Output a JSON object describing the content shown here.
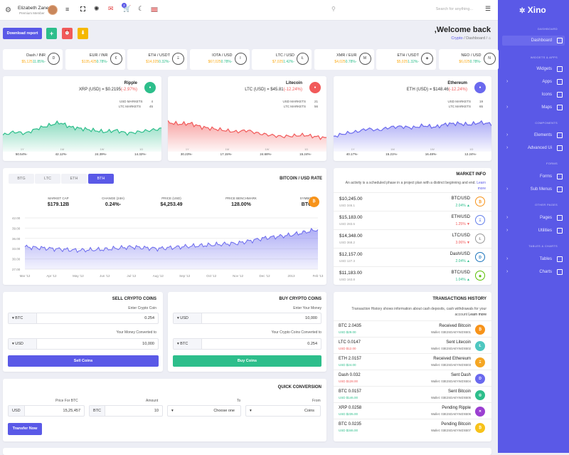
{
  "topbar": {
    "user_name": "Elizabeth Zane",
    "user_role": "Premium Member",
    "search_placeholder": "Search for anything...",
    "cart_badge": "2"
  },
  "sidebar": {
    "logo": "Xino",
    "sections": {
      "dashboard": "DASHBOARD",
      "widgets": "WIDGETS & APPS",
      "components": "COMPONENTS",
      "forms": "FORMS",
      "other": "OTHER PAGES",
      "tables": "TABLES & CHARTS"
    },
    "items": [
      "Dashboard",
      "Widgets",
      "Apps",
      "Icons",
      "Maps",
      "Elements",
      "Advanced Ui",
      "Forms",
      "Sub Menus",
      "Pages",
      "Utilities",
      "Tables",
      "Charts"
    ]
  },
  "header": {
    "welcome": ",Welcome back",
    "breadcrumb_a": "Crypto",
    "breadcrumb_b": "Dashboard"
  },
  "actions": {
    "download": "Download report",
    "add": "+",
    "alarm": "⏰",
    "save": "⬇"
  },
  "tickers": [
    {
      "name": "Dash / INR",
      "price": "$5,125",
      "change": "11.85%-",
      "coin": "D"
    },
    {
      "name": "EUR / INR",
      "price": "$135,425",
      "change": "0.78%-",
      "coin": "€"
    },
    {
      "name": "ETH / USDT",
      "price": "$14,025",
      "change": "0.32%-",
      "coin": "Ξ"
    },
    {
      "name": "IOTA / USD",
      "price": "$67,025",
      "change": "0.78%-",
      "coin": "I"
    },
    {
      "name": "LTC / USD",
      "price": "$7,025",
      "change": "1.42%-",
      "coin": "Ł"
    },
    {
      "name": "XMR / EUR",
      "price": "$4,025",
      "change": "0.78%-",
      "coin": "M"
    },
    {
      "name": "ETH / USDT",
      "price": "$5,025",
      "change": "1.32%-",
      "coin": "◈"
    },
    {
      "name": "NEO / USD",
      "price": "$6,025",
      "change": "0.78%-",
      "coin": "N"
    }
  ],
  "coins": [
    {
      "name": "Ripple",
      "pair": "XRP (USD) = $0.2195",
      "change": "(-2.97%)",
      "usd_markets_label": "USD MARKETS",
      "usd_markets": "4",
      "ltc_markets_label": "LTC MARKETS",
      "ltc_markets": "45",
      "color": "#2dbe8b",
      "foot": [
        {
          "l": "1Y",
          "v": "50.54%-"
        },
        {
          "l": "1M",
          "v": "42.12%-"
        },
        {
          "l": "1W",
          "v": "24.39%-"
        },
        {
          "l": "1D",
          "v": "14.32%-"
        }
      ]
    },
    {
      "name": "Litecoin",
      "pair": "LTC (USD) = $45.81",
      "change": "(-12.24%)",
      "usd_markets_label": "USD MARKETS",
      "usd_markets": "21",
      "ltc_markets_label": "LTC MARKETS",
      "ltc_markets": "56",
      "color": "#f15a5a",
      "foot": [
        {
          "l": "1Y",
          "v": "30.23%-"
        },
        {
          "l": "1M",
          "v": "17.15%-"
        },
        {
          "l": "1W",
          "v": "24.68%-"
        },
        {
          "l": "1D",
          "v": "15.24%-"
        }
      ]
    },
    {
      "name": "Ethereum",
      "pair": "ETH (USD) = $148.46",
      "change": "(-12.24%)",
      "usd_markets_label": "USD MARKETS",
      "usd_markets": "19",
      "ltc_markets_label": "LTC MARKETS",
      "ltc_markets": "65",
      "color": "#6a69ee",
      "foot": [
        {
          "l": "1Y",
          "v": "40.17%-"
        },
        {
          "l": "1M",
          "v": "15.21%-"
        },
        {
          "l": "1W",
          "v": "16.48%-"
        },
        {
          "l": "1D",
          "v": "12.24%-"
        }
      ]
    }
  ],
  "rate": {
    "title": "BITCOIN / USD RATE",
    "tabs": [
      "BTG",
      "LTC",
      "ETH",
      "BTH"
    ],
    "stats": [
      {
        "label": "MARKET CAP",
        "value": "$179.12B"
      },
      {
        "label": "CHANGE (24H)",
        "value": "0.24%-"
      },
      {
        "label": "PRICE (USD)",
        "value": "$4,253.49"
      },
      {
        "label": "PRICE BENCHMARK",
        "value": "128.00%"
      },
      {
        "label": "SYMBOL",
        "value": "BTC"
      }
    ]
  },
  "chart_data": {
    "type": "area",
    "categories": [
      "Mar '12",
      "Apr '12",
      "May '12",
      "Jun '12",
      "Jul '12",
      "Aug '12",
      "Sep '12",
      "Oct '12",
      "Nov '12",
      "Dec '12",
      "2013",
      "Feb '13"
    ],
    "yticks": [
      "27.00",
      "30.00",
      "33.00",
      "36.00",
      "39.00",
      "42.00"
    ],
    "ylim": [
      27,
      42
    ],
    "values": [
      33.5,
      33.0,
      32.5,
      32.8,
      33.5,
      33.0,
      33.6,
      34.1,
      34.6,
      36.1,
      37.0,
      38.6
    ],
    "color": "#6a69ee"
  },
  "market": {
    "title": "MARKET INFO",
    "desc": "An activity is a scheduled phase in a project plan with a distinct beginning and end.",
    "learn": "Learn more",
    "rows": [
      {
        "price": "$10,245.00",
        "vol": "USD 346.1",
        "pair": "BTC/USD",
        "chg": "2.04% ▲",
        "up": true,
        "coin": "₿",
        "color": "#f7931a"
      },
      {
        "price": "$15,183.00",
        "vol": "USD 283.5",
        "pair": "ETH/USD",
        "chg": "1.25% ▼",
        "up": false,
        "coin": "Ξ",
        "color": "#627eea"
      },
      {
        "price": "$14,348.00",
        "vol": "USD 368.2",
        "pair": "LTC/USD",
        "chg": "3.06% ▼",
        "up": false,
        "coin": "Ł",
        "color": "#999"
      },
      {
        "price": "$12,157.00",
        "vol": "USD 127.3",
        "pair": "Dash/USD",
        "chg": "2.04% ▲",
        "up": true,
        "coin": "D",
        "color": "#1c75bc"
      },
      {
        "price": "$11,183.00",
        "vol": "USD 163.8",
        "pair": "BTC/USD",
        "chg": "1.04% ▲",
        "up": true,
        "coin": "◈",
        "color": "#58bf00"
      }
    ]
  },
  "sell": {
    "title": "SELL CRYPTO COINS",
    "label1": "Enter Crypto Coin",
    "c1": "BTC",
    "v1": "0.254",
    "label2": "Your Money Converted to",
    "c2": "USD",
    "v2": "10,000",
    "button": "Sell Coins"
  },
  "buy": {
    "title": "BUY CRYPTO COINS",
    "label1": "Enter Your Money",
    "c1": "USD",
    "v1": "10,000",
    "label2": "Your Crypto Coins Converted to",
    "c2": "BTC",
    "v2": "0.254",
    "button": "Buy Coins"
  },
  "tx": {
    "title": "TRANSACTIONS HISTORY",
    "desc": "Transaction History shows information about cash deposits, cash withdrawals for your account",
    "learn": "Learn more",
    "rows": [
      {
        "amt": "BTC 2.0435",
        "usd": "USD $29.00",
        "up": true,
        "label": "Received Bitcoin",
        "wallet": "Wallet: 03E2SDAEYWZXB01",
        "coin": "₿",
        "color": "#f7931a"
      },
      {
        "amt": "LTC 0.0147",
        "usd": "USD $12.00",
        "up": false,
        "label": "Sent Litecoin",
        "wallet": "Wallet: 03E2SDAEYWZXB02",
        "coin": "Ł",
        "color": "#4ec7c0"
      },
      {
        "amt": "ETH 2.0157",
        "usd": "USD $24.00",
        "up": true,
        "label": "Received Ethereum",
        "wallet": "Wallet: 03E2SDAEYWZXB03",
        "coin": "Ξ",
        "color": "#f5a623"
      },
      {
        "amt": "Dash 0.032",
        "usd": "USD $128.00",
        "up": false,
        "label": "Sent Dash",
        "wallet": "Wallet: 03E2SDAEYWZXB04",
        "coin": "D",
        "color": "#6a69ee"
      },
      {
        "amt": "BTC 0.0157",
        "usd": "USD $146.00",
        "up": true,
        "label": "Sent Bitcoin",
        "wallet": "Wallet: 03E2SDAEYWZXB05",
        "coin": "◎",
        "color": "#2dbe8b"
      },
      {
        "amt": "XRP 0.0258",
        "usd": "USD $235.00",
        "up": true,
        "label": "Pending Ripple",
        "wallet": "Wallet: 03E2SDAEYWZXB06",
        "coin": "✕",
        "color": "#9b3fd1"
      },
      {
        "amt": "BTC 0.0235",
        "usd": "USD $346.00",
        "up": true,
        "label": "Pending Bitcoin",
        "wallet": "Wallet: 03E2SDAEYWZXB07",
        "coin": "₿",
        "color": "#f7c21a"
      }
    ]
  },
  "quick": {
    "title": "QUICK CONVERSION",
    "l_price": "Price For BTC",
    "l_amount": "Amount",
    "l_to": "To",
    "l_from": "From",
    "c1": "USD",
    "v1": "15,25,457",
    "c2": "BTC",
    "v2": "10",
    "to": "Choose one",
    "from": "Coins",
    "button": "Transfer Now"
  }
}
